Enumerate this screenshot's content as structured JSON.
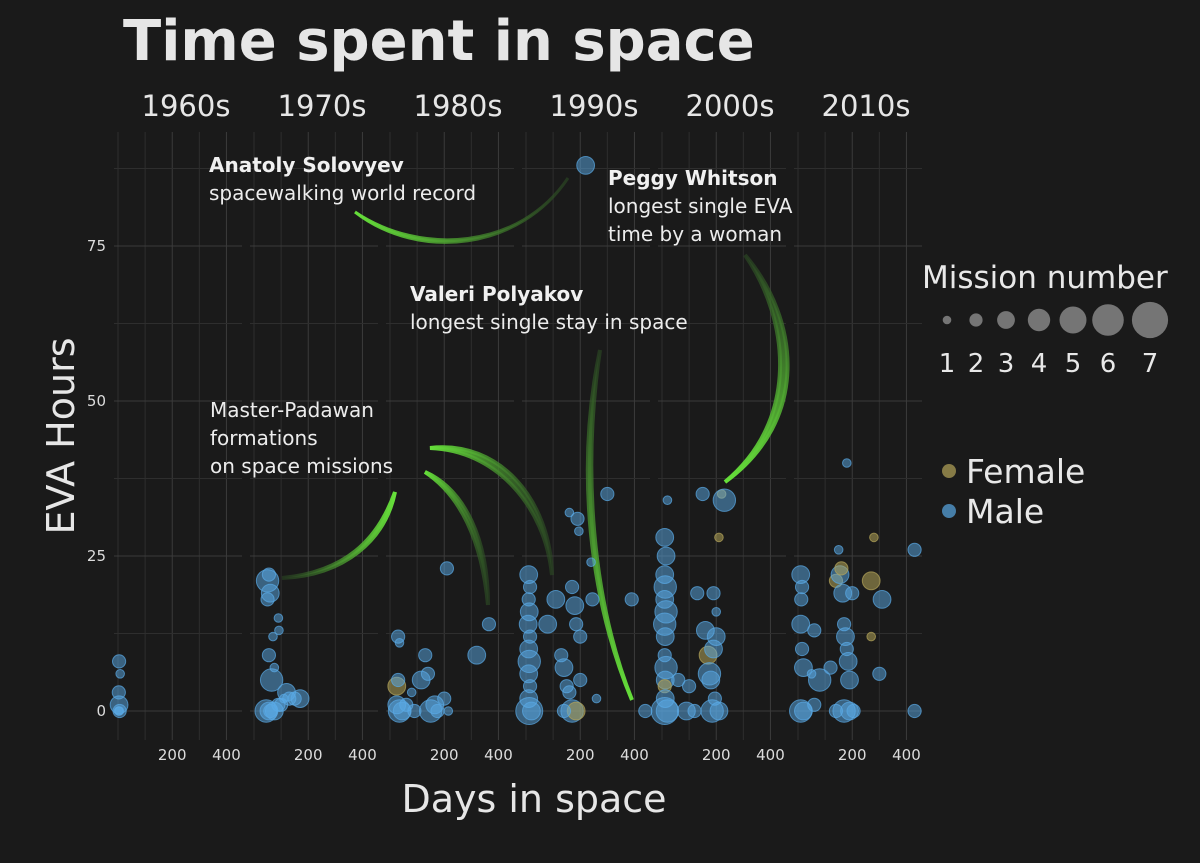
{
  "chart_data": {
    "type": "scatter",
    "title": "Time spent in space",
    "xlabel": "Days in space",
    "ylabel": "EVA Hours",
    "facets": [
      "1960s",
      "1970s",
      "1980s",
      "1990s",
      "2000s",
      "2010s"
    ],
    "xlim": [
      0,
      450
    ],
    "ylim": [
      -3,
      92
    ],
    "x_ticks": [
      200,
      400
    ],
    "y_ticks": [
      0,
      25,
      50,
      75
    ],
    "grid": true,
    "legend_size": {
      "title": "Mission number",
      "values": [
        "1",
        "2",
        "3",
        "4",
        "5",
        "6",
        "7"
      ]
    },
    "legend_color": {
      "entries": [
        {
          "label": "Female",
          "color": "#b5a55a"
        },
        {
          "label": "Male",
          "color": "#5aa9e6"
        }
      ]
    },
    "annotations": [
      {
        "bold": "Anatoly Solovyev",
        "text": [
          "spacewalking world record"
        ]
      },
      {
        "bold": "Peggy Whitson",
        "text": [
          "longest single EVA",
          "time by a woman"
        ]
      },
      {
        "bold": "Valeri Polyakov",
        "text": [
          "longest single stay in space"
        ]
      },
      {
        "bold": "",
        "text": [
          "Master-Padawan",
          "formations",
          "on space missions"
        ]
      }
    ],
    "points": [
      [
        0,
        5,
        0,
        1,
        "M"
      ],
      [
        0,
        4,
        8,
        2,
        "M"
      ],
      [
        0,
        3,
        3,
        2,
        "M"
      ],
      [
        0,
        4,
        1,
        3,
        "M"
      ],
      [
        0,
        2,
        0,
        1,
        "M"
      ],
      [
        0,
        6,
        0,
        2,
        "M"
      ],
      [
        0,
        8,
        6,
        1,
        "M"
      ],
      [
        1,
        50,
        21,
        4,
        "M"
      ],
      [
        1,
        55,
        22,
        2,
        "M"
      ],
      [
        1,
        60,
        19,
        3,
        "M"
      ],
      [
        1,
        50,
        18,
        2,
        "M"
      ],
      [
        1,
        55,
        9,
        2,
        "M"
      ],
      [
        1,
        65,
        5,
        4,
        "M"
      ],
      [
        1,
        70,
        12,
        1,
        "M"
      ],
      [
        1,
        75,
        7,
        1,
        "M"
      ],
      [
        1,
        90,
        15,
        1,
        "M"
      ],
      [
        1,
        92,
        13,
        1,
        "M"
      ],
      [
        1,
        120,
        3,
        3,
        "M"
      ],
      [
        1,
        130,
        2,
        2,
        "M"
      ],
      [
        1,
        150,
        2,
        2,
        "M"
      ],
      [
        1,
        170,
        2,
        3,
        "M"
      ],
      [
        1,
        90,
        1,
        2,
        "M"
      ],
      [
        1,
        45,
        0,
        4,
        "M"
      ],
      [
        1,
        55,
        0,
        3,
        "M"
      ],
      [
        1,
        60,
        0,
        2,
        "M"
      ],
      [
        1,
        75,
        0,
        3,
        "M"
      ],
      [
        1,
        100,
        1,
        2,
        "M"
      ],
      [
        1,
        110,
        2,
        1,
        "M"
      ],
      [
        2,
        30,
        12,
        2,
        "M"
      ],
      [
        2,
        35,
        11,
        1,
        "M"
      ],
      [
        2,
        25,
        4,
        3,
        "F"
      ],
      [
        2,
        30,
        5,
        2,
        "M"
      ],
      [
        2,
        25,
        1,
        3,
        "M"
      ],
      [
        2,
        35,
        0,
        4,
        "M"
      ],
      [
        2,
        45,
        0,
        3,
        "M"
      ],
      [
        2,
        60,
        1,
        2,
        "M"
      ],
      [
        2,
        90,
        0,
        2,
        "M"
      ],
      [
        2,
        115,
        5,
        3,
        "M"
      ],
      [
        2,
        130,
        9,
        2,
        "M"
      ],
      [
        2,
        140,
        6,
        2,
        "M"
      ],
      [
        2,
        150,
        0,
        4,
        "M"
      ],
      [
        2,
        165,
        1,
        3,
        "M"
      ],
      [
        2,
        175,
        0,
        2,
        "M"
      ],
      [
        2,
        200,
        2,
        2,
        "M"
      ],
      [
        2,
        210,
        23,
        2,
        "M"
      ],
      [
        2,
        215,
        0,
        1,
        "M"
      ],
      [
        2,
        320,
        9,
        3,
        "M"
      ],
      [
        2,
        365,
        14,
        2,
        "M"
      ],
      [
        2,
        80,
        3,
        1,
        "M"
      ],
      [
        3,
        10,
        22,
        3,
        "M"
      ],
      [
        3,
        15,
        20,
        2,
        "M"
      ],
      [
        3,
        10,
        18,
        2,
        "M"
      ],
      [
        3,
        12,
        16,
        3,
        "M"
      ],
      [
        3,
        8,
        14,
        3,
        "M"
      ],
      [
        3,
        15,
        12,
        2,
        "M"
      ],
      [
        3,
        10,
        10,
        3,
        "M"
      ],
      [
        3,
        12,
        8,
        4,
        "M"
      ],
      [
        3,
        10,
        6,
        3,
        "M"
      ],
      [
        3,
        15,
        4,
        2,
        "M"
      ],
      [
        3,
        10,
        2,
        3,
        "M"
      ],
      [
        3,
        12,
        0,
        5,
        "M"
      ],
      [
        3,
        20,
        0,
        3,
        "M"
      ],
      [
        3,
        80,
        14,
        3,
        "M"
      ],
      [
        3,
        110,
        18,
        3,
        "M"
      ],
      [
        3,
        130,
        9,
        2,
        "M"
      ],
      [
        3,
        140,
        7,
        3,
        "M"
      ],
      [
        3,
        150,
        4,
        2,
        "M"
      ],
      [
        3,
        160,
        32,
        1,
        "M"
      ],
      [
        3,
        170,
        20,
        2,
        "M"
      ],
      [
        3,
        180,
        17,
        3,
        "M"
      ],
      [
        3,
        185,
        14,
        2,
        "M"
      ],
      [
        3,
        190,
        31,
        2,
        "M"
      ],
      [
        3,
        195,
        29,
        1,
        "M"
      ],
      [
        3,
        200,
        12,
        2,
        "M"
      ],
      [
        3,
        170,
        0,
        4,
        "M"
      ],
      [
        3,
        185,
        0,
        3,
        "F"
      ],
      [
        3,
        160,
        3,
        2,
        "M"
      ],
      [
        3,
        140,
        0,
        2,
        "M"
      ],
      [
        3,
        300,
        35,
        2,
        "M"
      ],
      [
        3,
        240,
        24,
        1,
        "M"
      ],
      [
        3,
        245,
        18,
        2,
        "M"
      ],
      [
        3,
        390,
        18,
        2,
        "M"
      ],
      [
        3,
        440,
        0,
        2,
        "M"
      ],
      [
        3,
        260,
        2,
        1,
        "M"
      ],
      [
        3,
        200,
        5,
        2,
        "M"
      ],
      [
        3,
        220,
        88,
        3,
        "M"
      ],
      [
        4,
        10,
        28,
        3,
        "M"
      ],
      [
        4,
        15,
        25,
        3,
        "M"
      ],
      [
        4,
        10,
        22,
        3,
        "M"
      ],
      [
        4,
        12,
        20,
        4,
        "M"
      ],
      [
        4,
        10,
        18,
        3,
        "M"
      ],
      [
        4,
        15,
        16,
        4,
        "M"
      ],
      [
        4,
        10,
        14,
        4,
        "M"
      ],
      [
        4,
        12,
        12,
        3,
        "M"
      ],
      [
        4,
        10,
        9,
        2,
        "M"
      ],
      [
        4,
        15,
        7,
        4,
        "M"
      ],
      [
        4,
        12,
        5,
        3,
        "M"
      ],
      [
        4,
        10,
        4,
        2,
        "F"
      ],
      [
        4,
        12,
        2,
        3,
        "M"
      ],
      [
        4,
        10,
        0,
        5,
        "M"
      ],
      [
        4,
        20,
        0,
        4,
        "M"
      ],
      [
        4,
        60,
        5,
        2,
        "M"
      ],
      [
        4,
        90,
        0,
        3,
        "M"
      ],
      [
        4,
        100,
        4,
        2,
        "M"
      ],
      [
        4,
        130,
        19,
        2,
        "M"
      ],
      [
        4,
        160,
        13,
        3,
        "M"
      ],
      [
        4,
        170,
        9,
        3,
        "F"
      ],
      [
        4,
        175,
        6,
        4,
        "M"
      ],
      [
        4,
        180,
        5,
        3,
        "M"
      ],
      [
        4,
        185,
        0,
        4,
        "M"
      ],
      [
        4,
        190,
        10,
        3,
        "M"
      ],
      [
        4,
        200,
        12,
        3,
        "M"
      ],
      [
        4,
        195,
        2,
        2,
        "M"
      ],
      [
        4,
        210,
        0,
        3,
        "M"
      ],
      [
        4,
        200,
        16,
        1,
        "M"
      ],
      [
        4,
        190,
        19,
        2,
        "M"
      ],
      [
        4,
        220,
        35,
        1,
        "F"
      ],
      [
        4,
        230,
        34,
        4,
        "M"
      ],
      [
        4,
        150,
        35,
        2,
        "M"
      ],
      [
        4,
        210,
        28,
        1,
        "F"
      ],
      [
        4,
        20,
        34,
        1,
        "M"
      ],
      [
        4,
        120,
        0,
        2,
        "M"
      ],
      [
        5,
        10,
        22,
        3,
        "M"
      ],
      [
        5,
        15,
        20,
        2,
        "M"
      ],
      [
        5,
        12,
        18,
        2,
        "M"
      ],
      [
        5,
        10,
        14,
        3,
        "M"
      ],
      [
        5,
        15,
        10,
        2,
        "M"
      ],
      [
        5,
        20,
        7,
        3,
        "M"
      ],
      [
        5,
        10,
        0,
        4,
        "M"
      ],
      [
        5,
        20,
        0,
        3,
        "M"
      ],
      [
        5,
        50,
        6,
        1,
        "M"
      ],
      [
        5,
        60,
        1,
        2,
        "M"
      ],
      [
        5,
        80,
        5,
        4,
        "M"
      ],
      [
        5,
        120,
        7,
        2,
        "M"
      ],
      [
        5,
        140,
        21,
        2,
        "F"
      ],
      [
        5,
        150,
        26,
        1,
        "M"
      ],
      [
        5,
        155,
        22,
        3,
        "M"
      ],
      [
        5,
        160,
        23,
        2,
        "F"
      ],
      [
        5,
        165,
        19,
        3,
        "M"
      ],
      [
        5,
        170,
        14,
        2,
        "M"
      ],
      [
        5,
        175,
        12,
        3,
        "M"
      ],
      [
        5,
        180,
        10,
        2,
        "M"
      ],
      [
        5,
        185,
        8,
        3,
        "M"
      ],
      [
        5,
        190,
        5,
        3,
        "M"
      ],
      [
        5,
        200,
        19,
        2,
        "M"
      ],
      [
        5,
        170,
        0,
        4,
        "M"
      ],
      [
        5,
        190,
        0,
        3,
        "M"
      ],
      [
        5,
        205,
        0,
        2,
        "M"
      ],
      [
        5,
        140,
        0,
        2,
        "M"
      ],
      [
        5,
        180,
        40,
        1,
        "M"
      ],
      [
        5,
        270,
        21,
        3,
        "F"
      ],
      [
        5,
        280,
        28,
        1,
        "F"
      ],
      [
        5,
        310,
        18,
        3,
        "M"
      ],
      [
        5,
        300,
        6,
        2,
        "M"
      ],
      [
        5,
        270,
        12,
        1,
        "F"
      ],
      [
        5,
        430,
        26,
        2,
        "M"
      ],
      [
        5,
        430,
        0,
        2,
        "M"
      ],
      [
        5,
        60,
        13,
        2,
        "M"
      ]
    ]
  }
}
